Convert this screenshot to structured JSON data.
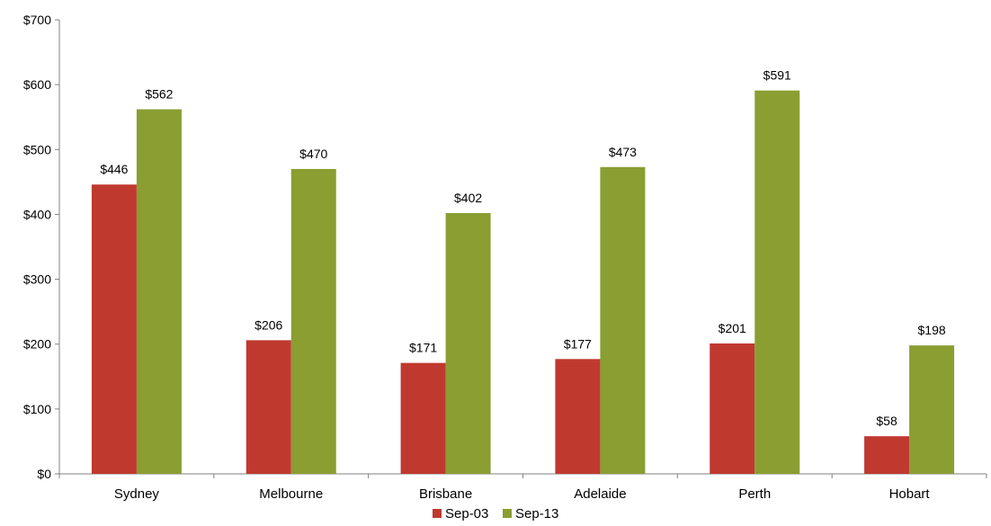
{
  "chart_data": {
    "type": "bar",
    "title": "",
    "xlabel": "",
    "ylabel": "",
    "categories": [
      "Sydney",
      "Melbourne",
      "Brisbane",
      "Adelaide",
      "Perth",
      "Hobart"
    ],
    "series": [
      {
        "name": "Sep-03",
        "color": "#C0392F",
        "values": [
          446,
          206,
          171,
          177,
          201,
          58
        ]
      },
      {
        "name": "Sep-13",
        "color": "#8A9E32",
        "values": [
          562,
          470,
          402,
          473,
          591,
          198
        ]
      }
    ],
    "data_labels": [
      [
        "$446",
        "$206",
        "$171",
        "$177",
        "$201",
        "$58"
      ],
      [
        "$562",
        "$470",
        "$402",
        "$473",
        "$591",
        "$198"
      ]
    ],
    "ylim": [
      0,
      700
    ],
    "yticks": [
      0,
      100,
      200,
      300,
      400,
      500,
      600,
      700
    ],
    "ytick_labels": [
      "$0",
      "$100",
      "$200",
      "$300",
      "$400",
      "$500",
      "$600",
      "$700"
    ],
    "grid": false,
    "legend": "bottom-center"
  }
}
